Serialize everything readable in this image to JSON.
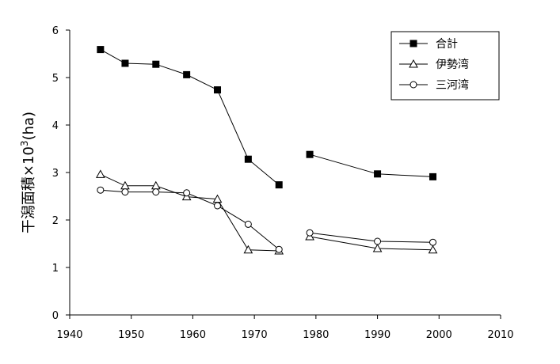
{
  "chart_data": {
    "type": "line",
    "ylabel": "干潟面積×10",
    "ylabel_sup": "3",
    "ylabel_unit": "(ha)",
    "xlim": [
      1940,
      2010
    ],
    "ylim": [
      0,
      6
    ],
    "x_ticks": [
      "1940",
      "1950",
      "1960",
      "1970",
      "1980",
      "1990",
      "2000",
      "2010"
    ],
    "y_ticks": [
      "0",
      "1",
      "2",
      "3",
      "4",
      "5",
      "6"
    ],
    "grid": false,
    "legend_position": "top-right",
    "series": [
      {
        "name": "合計",
        "marker": "square-filled",
        "segments": [
          [
            [
              1945,
              5.59
            ],
            [
              1949,
              5.3
            ],
            [
              1954,
              5.28
            ],
            [
              1959,
              5.06
            ],
            [
              1964,
              4.74
            ],
            [
              1969,
              3.28
            ],
            [
              1974,
              2.74
            ]
          ],
          [
            [
              1979,
              3.38
            ],
            [
              1990,
              2.97
            ],
            [
              1999,
              2.91
            ]
          ]
        ]
      },
      {
        "name": "伊勢湾",
        "marker": "triangle-open",
        "segments": [
          [
            [
              1945,
              2.96
            ],
            [
              1949,
              2.72
            ],
            [
              1954,
              2.72
            ],
            [
              1959,
              2.49
            ],
            [
              1964,
              2.44
            ],
            [
              1969,
              1.37
            ],
            [
              1974,
              1.35
            ]
          ],
          [
            [
              1979,
              1.65
            ],
            [
              1990,
              1.4
            ],
            [
              1999,
              1.37
            ]
          ]
        ]
      },
      {
        "name": "三河湾",
        "marker": "circle-open",
        "segments": [
          [
            [
              1945,
              2.63
            ],
            [
              1949,
              2.59
            ],
            [
              1954,
              2.59
            ],
            [
              1959,
              2.57
            ],
            [
              1964,
              2.3
            ],
            [
              1969,
              1.91
            ],
            [
              1974,
              1.38
            ]
          ],
          [
            [
              1979,
              1.73
            ],
            [
              1990,
              1.55
            ],
            [
              1999,
              1.53
            ]
          ]
        ]
      }
    ]
  }
}
